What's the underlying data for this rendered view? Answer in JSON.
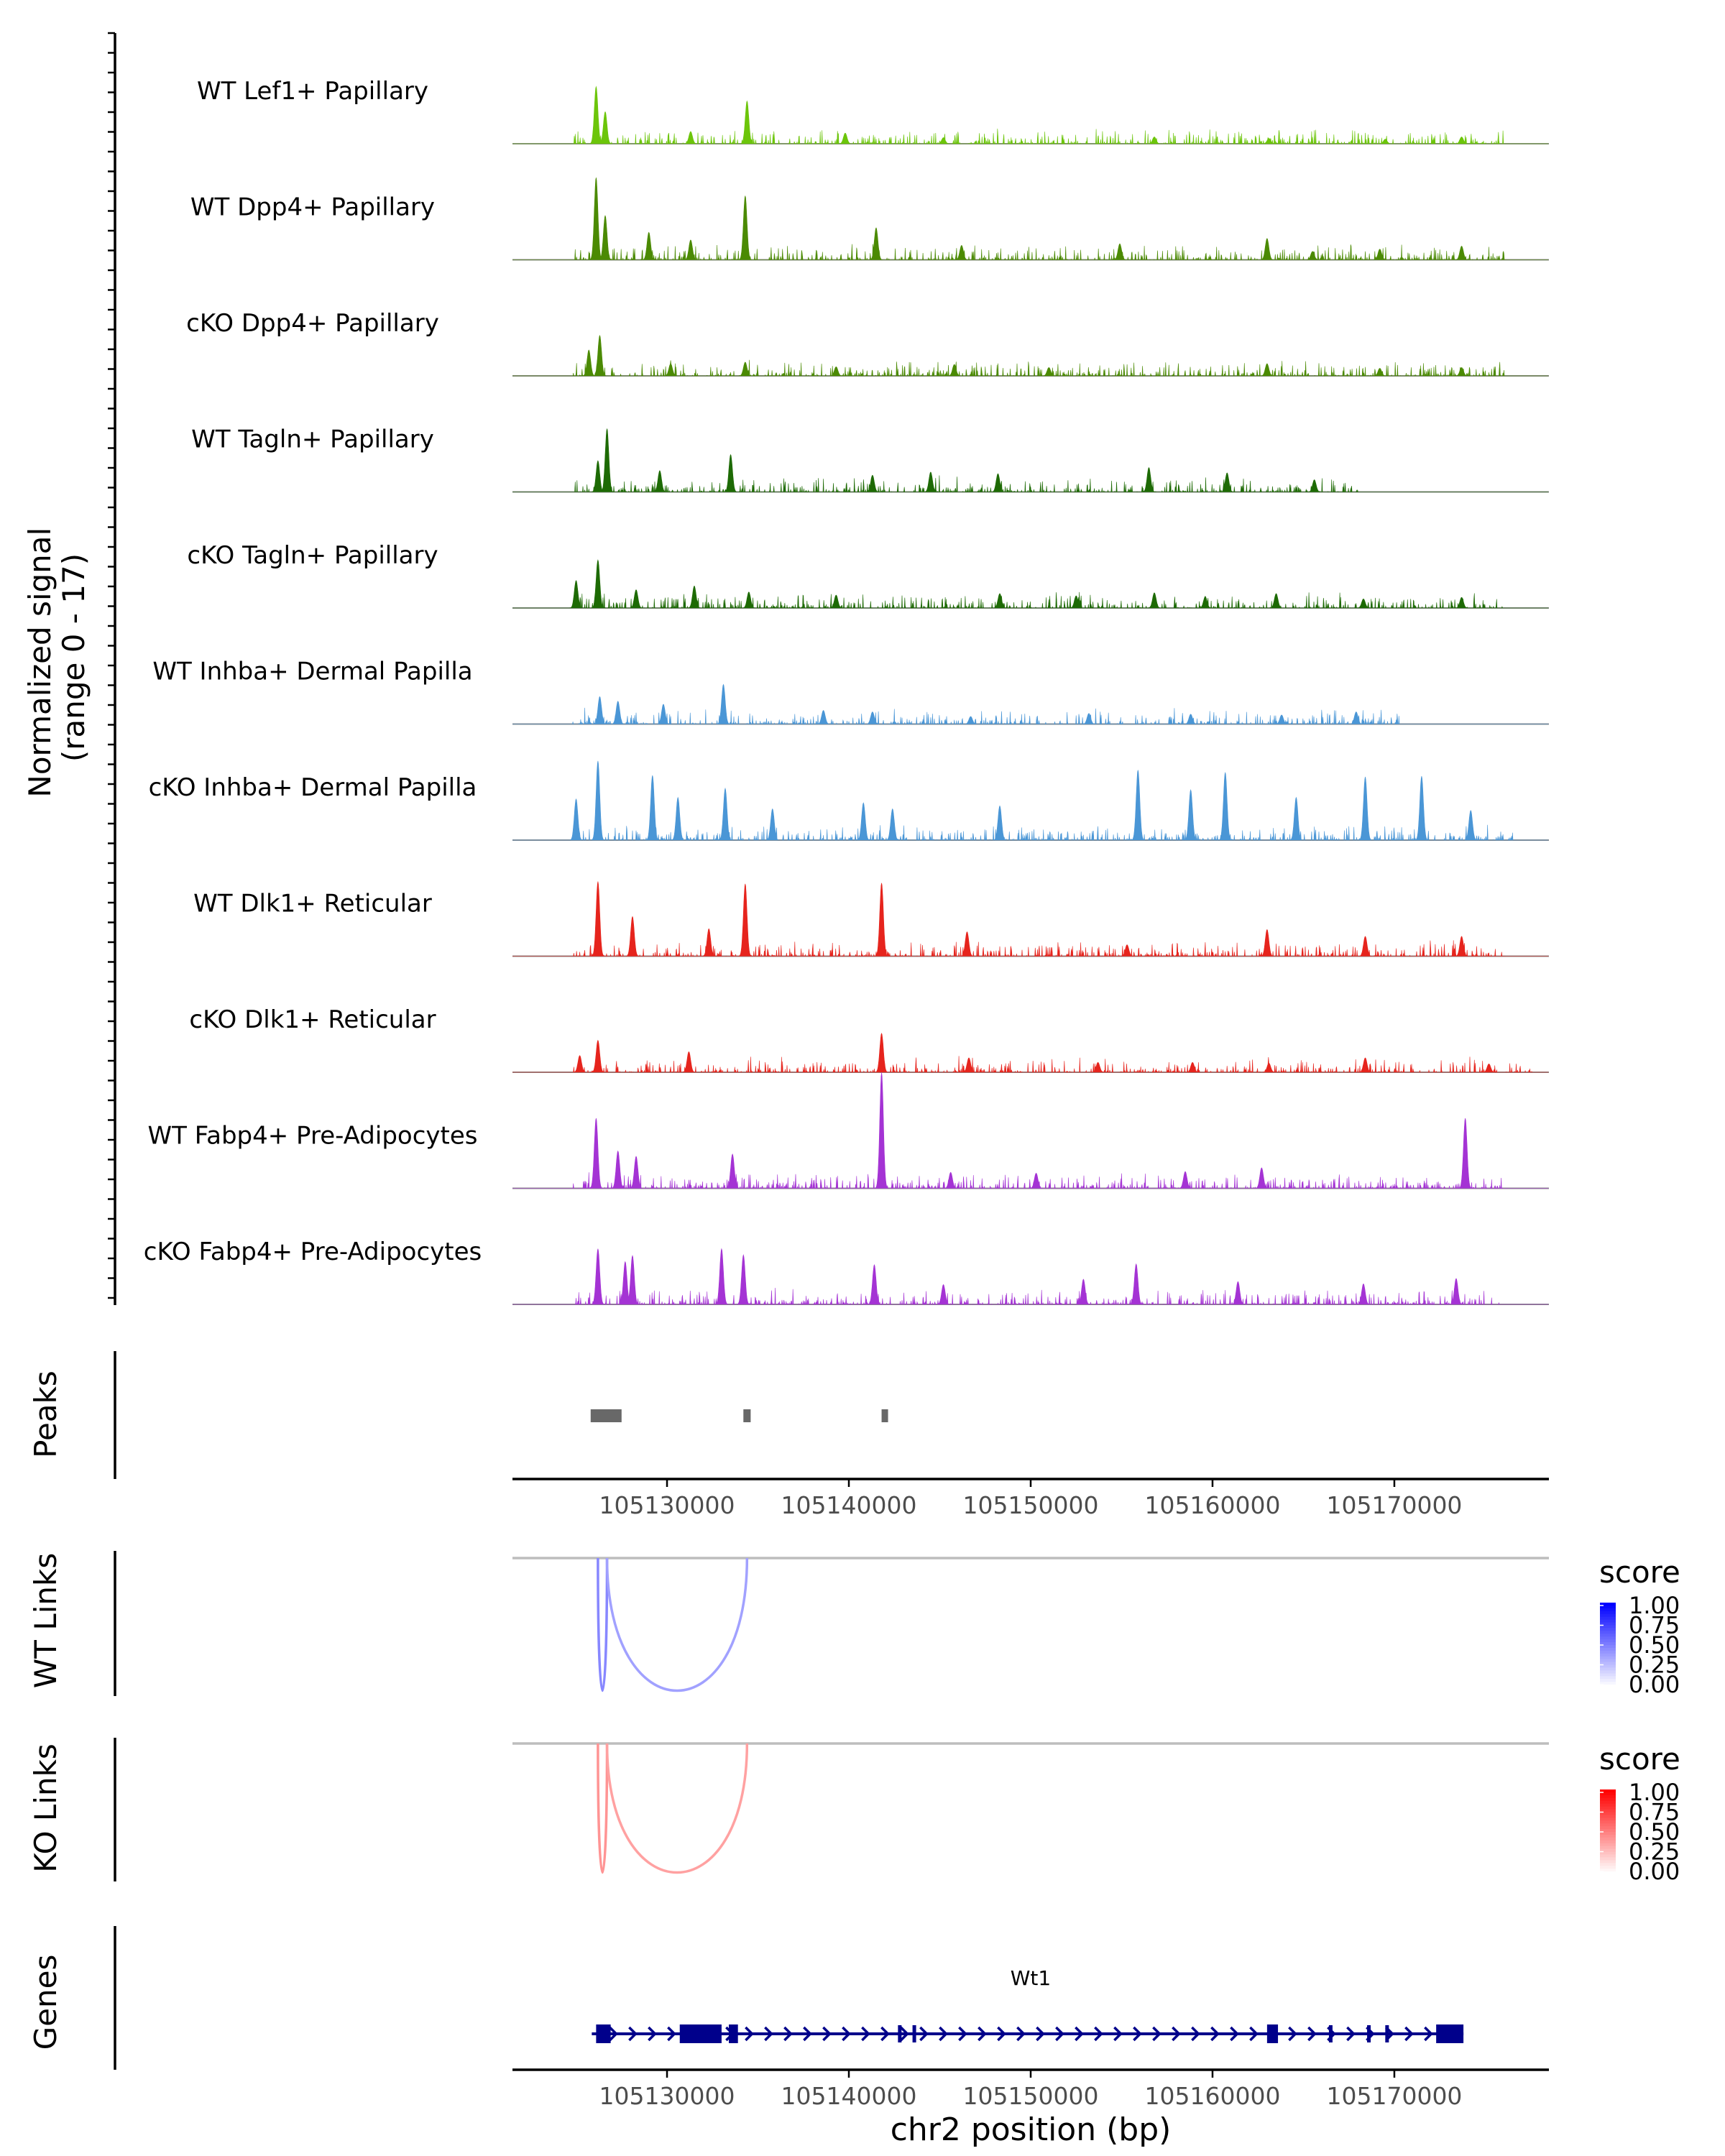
{
  "chart_data": {
    "type": "area",
    "title": "",
    "xlabel": "chr2 position (bp)",
    "xlim": [
      105121500,
      105178500
    ],
    "x_ticks": [
      105130000,
      105140000,
      105150000,
      105160000,
      105170000
    ],
    "x_tick_labels": [
      "105130000",
      "105140000",
      "105150000",
      "105160000",
      "105170000"
    ],
    "coverage": {
      "ylabel_line1": "Normalized signal",
      "ylabel_line2": "(range 0 - 17)",
      "ylim": [
        0,
        17
      ],
      "tracks": [
        {
          "name": "WT Lef1+ Papillary",
          "color": "#6cc50a",
          "peaks": [
            [
              105126100,
              7.5
            ],
            [
              105126600,
              4.2
            ],
            [
              105134400,
              5.6
            ],
            [
              105131300,
              1.6
            ],
            [
              105139800,
              1.4
            ],
            [
              105145200,
              0.8
            ],
            [
              105156800,
              0.9
            ],
            [
              105163100,
              0.7
            ],
            [
              105169500,
              0.6
            ],
            [
              105173700,
              0.9
            ]
          ]
        },
        {
          "name": "WT Dpp4+ Papillary",
          "color": "#4b8a03",
          "peaks": [
            [
              105126100,
              10.8
            ],
            [
              105126600,
              5.8
            ],
            [
              105134300,
              8.4
            ],
            [
              105141500,
              4.2
            ],
            [
              105131300,
              2.6
            ],
            [
              105129000,
              3.6
            ],
            [
              105146200,
              1.9
            ],
            [
              105154900,
              2.1
            ],
            [
              105163000,
              2.8
            ],
            [
              105165500,
              1.1
            ],
            [
              105169200,
              1.4
            ],
            [
              105173700,
              1.8
            ]
          ]
        },
        {
          "name": "cKO Dpp4+ Papillary",
          "color": "#4b8a03",
          "peaks": [
            [
              105126300,
              5.3
            ],
            [
              105125700,
              3.4
            ],
            [
              105130200,
              1.6
            ],
            [
              105134300,
              1.8
            ],
            [
              105139300,
              1.2
            ],
            [
              105145800,
              1.5
            ],
            [
              105151000,
              1.1
            ],
            [
              105163000,
              1.6
            ],
            [
              105169200,
              1.0
            ],
            [
              105173700,
              1.1
            ]
          ]
        },
        {
          "name": "WT Tagln+ Papillary",
          "color": "#1d6a04",
          "peaks": [
            [
              105126700,
              8.3
            ],
            [
              105126200,
              4.1
            ],
            [
              105133500,
              4.9
            ],
            [
              105129600,
              2.8
            ],
            [
              105141300,
              2.2
            ],
            [
              105144500,
              2.6
            ],
            [
              105148200,
              2.4
            ],
            [
              105156500,
              3.2
            ],
            [
              105160800,
              2.5
            ],
            [
              105165600,
              1.6
            ]
          ]
        },
        {
          "name": "cKO Tagln+ Papillary",
          "color": "#1d6a04",
          "peaks": [
            [
              105126200,
              6.3
            ],
            [
              105125000,
              3.6
            ],
            [
              105131500,
              2.9
            ],
            [
              105128300,
              2.4
            ],
            [
              105134500,
              2.1
            ],
            [
              105139300,
              1.7
            ],
            [
              105148300,
              1.9
            ],
            [
              105152500,
              1.6
            ],
            [
              105156800,
              2.0
            ],
            [
              105159600,
              1.5
            ],
            [
              105163500,
              1.9
            ],
            [
              105168300,
              1.2
            ],
            [
              105173700,
              1.4
            ]
          ]
        },
        {
          "name": "WT Inhba+ Dermal Papilla",
          "color": "#4a96d6",
          "peaks": [
            [
              105126300,
              3.6
            ],
            [
              105127300,
              3.0
            ],
            [
              105133100,
              5.2
            ],
            [
              105129800,
              2.6
            ],
            [
              105138600,
              1.8
            ],
            [
              105141300,
              1.6
            ],
            [
              105146700,
              1.0
            ],
            [
              105153200,
              1.4
            ],
            [
              105158800,
              1.3
            ],
            [
              105163800,
              1.2
            ],
            [
              105167900,
              1.6
            ]
          ]
        },
        {
          "name": "cKO Inhba+ Dermal Papilla",
          "color": "#4a96d6",
          "peaks": [
            [
              105126200,
              10.4
            ],
            [
              105125000,
              5.4
            ],
            [
              105129200,
              8.5
            ],
            [
              105130600,
              5.6
            ],
            [
              105133200,
              6.8
            ],
            [
              105135800,
              4.1
            ],
            [
              105140800,
              4.9
            ],
            [
              105142400,
              4.1
            ],
            [
              105148300,
              4.5
            ],
            [
              105155900,
              9.2
            ],
            [
              105158800,
              6.6
            ],
            [
              105160700,
              8.9
            ],
            [
              105164600,
              5.6
            ],
            [
              105168400,
              8.3
            ],
            [
              105171500,
              8.4
            ],
            [
              105174200,
              3.9
            ]
          ]
        },
        {
          "name": "WT Dlk1+ Reticular",
          "color": "#e6241d",
          "peaks": [
            [
              105126200,
              9.8
            ],
            [
              105128100,
              5.2
            ],
            [
              105134300,
              9.5
            ],
            [
              105141800,
              9.6
            ],
            [
              105132300,
              3.6
            ],
            [
              105146500,
              3.2
            ],
            [
              105155300,
              1.5
            ],
            [
              105163000,
              3.5
            ],
            [
              105168400,
              2.6
            ],
            [
              105173700,
              2.6
            ]
          ]
        },
        {
          "name": "cKO Dlk1+ Reticular",
          "color": "#e6241d",
          "peaks": [
            [
              105126200,
              4.2
            ],
            [
              105125200,
              2.2
            ],
            [
              105131200,
              2.7
            ],
            [
              105141800,
              5.1
            ],
            [
              105146600,
              1.9
            ],
            [
              105153700,
              1.3
            ],
            [
              105158900,
              1.3
            ],
            [
              105163100,
              1.2
            ],
            [
              105168400,
              1.9
            ],
            [
              105175200,
              1.1
            ]
          ]
        },
        {
          "name": "WT Fabp4+ Pre-Adipocytes",
          "color": "#a433d4",
          "peaks": [
            [
              105126100,
              9.2
            ],
            [
              105127300,
              4.9
            ],
            [
              105128300,
              4.2
            ],
            [
              105133600,
              4.5
            ],
            [
              105141800,
              15.2
            ],
            [
              105145600,
              2.1
            ],
            [
              105150300,
              2.0
            ],
            [
              105158500,
              2.2
            ],
            [
              105162700,
              2.7
            ],
            [
              105173900,
              9.2
            ]
          ]
        },
        {
          "name": "cKO Fabp4+ Pre-Adipocytes",
          "color": "#a433d4",
          "peaks": [
            [
              105126200,
              7.3
            ],
            [
              105127700,
              5.6
            ],
            [
              105128100,
              6.4
            ],
            [
              105133000,
              7.3
            ],
            [
              105134200,
              6.5
            ],
            [
              105141400,
              5.2
            ],
            [
              105145200,
              2.6
            ],
            [
              105152900,
              3.3
            ],
            [
              105155800,
              5.3
            ],
            [
              105161400,
              3.0
            ],
            [
              105168300,
              2.7
            ],
            [
              105173400,
              3.4
            ]
          ]
        }
      ]
    },
    "peaks_track": {
      "label": "Peaks",
      "regions": [
        [
          105125800,
          105127500
        ],
        [
          105134200,
          105134600
        ],
        [
          105141800,
          105142100
        ]
      ]
    },
    "links": [
      {
        "label": "WT Links",
        "legend_title": "score",
        "legend_ticks": [
          "1.00",
          "0.75",
          "0.50",
          "0.25",
          "0.00"
        ],
        "color_low": "#ffffff",
        "color_high": "#0000ff",
        "arcs": [
          {
            "start": 105126200,
            "end": 105126700,
            "score": 0.35
          },
          {
            "start": 105126700,
            "end": 105134400,
            "score": 0.25
          }
        ]
      },
      {
        "label": "KO Links",
        "legend_title": "score",
        "legend_ticks": [
          "1.00",
          "0.75",
          "0.50",
          "0.25",
          "0.00"
        ],
        "color_low": "#ffffff",
        "color_high": "#ff0000",
        "arcs": [
          {
            "start": 105126200,
            "end": 105126700,
            "score": 0.3
          },
          {
            "start": 105126700,
            "end": 105134400,
            "score": 0.25
          }
        ]
      }
    ],
    "genes": {
      "label": "Genes",
      "gene_name": "Wt1",
      "start": 105126100,
      "end": 105173800,
      "strand": "+",
      "exons": [
        [
          105126100,
          105126900
        ],
        [
          105130700,
          105133000
        ],
        [
          105133400,
          105133900
        ],
        [
          105163000,
          105163600
        ],
        [
          105172300,
          105173800
        ]
      ]
    }
  }
}
